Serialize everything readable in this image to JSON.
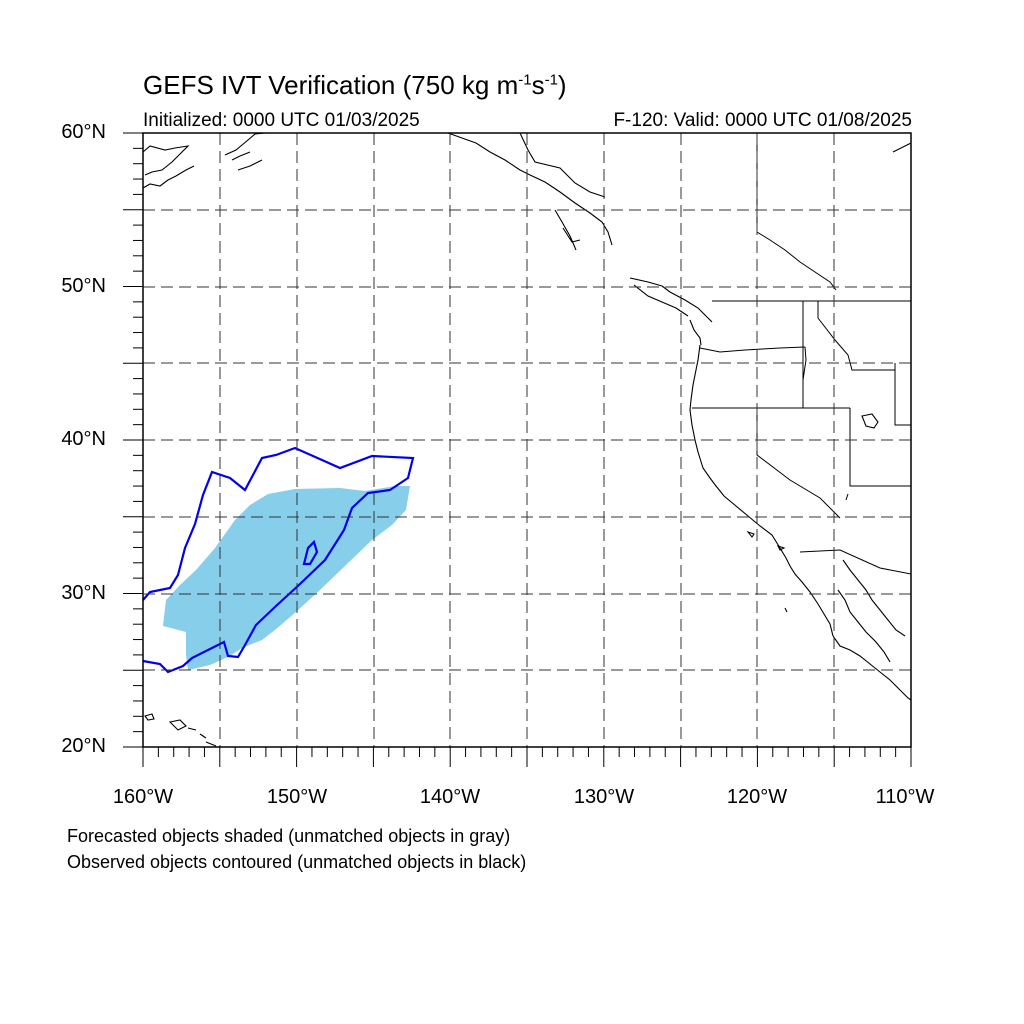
{
  "title": {
    "main": "GEFS IVT Verification (750 kg m",
    "sup1": "-1",
    "mid": "s",
    "sup2": "-1",
    "end": ")"
  },
  "initialized": "Initialized: 0000 UTC 01/03/2025",
  "valid": "F-120: Valid: 0000 UTC 01/08/2025",
  "lat_labels": [
    "60°N",
    "50°N",
    "40°N",
    "30°N",
    "20°N"
  ],
  "lon_labels": [
    "160°W",
    "150°W",
    "140°W",
    "130°W",
    "120°W",
    "110°W"
  ],
  "legend_notes": [
    "Forecasted objects shaded (unmatched objects in gray)",
    "Observed objects contoured (unmatched objects in black)"
  ],
  "colors": {
    "forecast_fill": "#87ceeb",
    "observed_contour": "#0000ee",
    "coastline": "#000000",
    "grid": "#333333"
  },
  "map_extent": {
    "lon": [
      -160,
      -110
    ],
    "lat": [
      20,
      60
    ]
  }
}
